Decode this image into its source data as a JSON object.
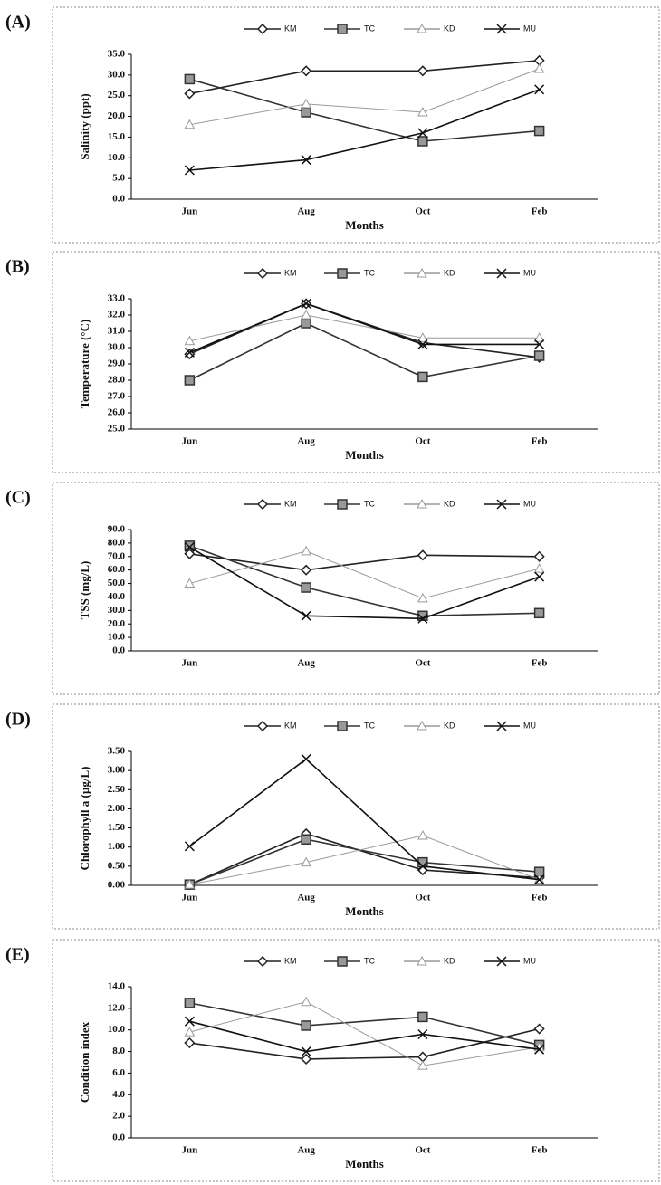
{
  "chart_data": [
    {
      "type": "line",
      "label": "(A)",
      "x_label": "Months",
      "y_label": "Salinity (ppt)",
      "categories": [
        "Jun",
        "Aug",
        "Oct",
        "Feb"
      ],
      "ylim": [
        0,
        35
      ],
      "yticks": [
        {
          "value": 0,
          "label": "0.0"
        },
        {
          "value": 5,
          "label": "5.0"
        },
        {
          "value": 10,
          "label": "10.0"
        },
        {
          "value": 15,
          "label": "15.0"
        },
        {
          "value": 20,
          "label": "20.0"
        },
        {
          "value": 25,
          "label": "25.0"
        },
        {
          "value": 30,
          "label": "30.0"
        },
        {
          "value": 35,
          "label": "35.0"
        }
      ],
      "series": [
        {
          "name": "KM",
          "color": "#222222",
          "marker": "diamond",
          "values": [
            25.5,
            31,
            31,
            33.5
          ]
        },
        {
          "name": "TC",
          "color": "#333333",
          "marker": "square",
          "values": [
            29,
            21,
            14,
            16.5
          ]
        },
        {
          "name": "KD",
          "color": "#9a9a9a",
          "marker": "triangle",
          "values": [
            18,
            23,
            21,
            31.5
          ]
        },
        {
          "name": "MU",
          "color": "#111111",
          "marker": "x",
          "values": [
            7,
            9.5,
            16,
            26.5
          ]
        }
      ]
    },
    {
      "type": "line",
      "label": "(B)",
      "x_label": "Months",
      "y_label": "Temperature (°C)",
      "categories": [
        "Jun",
        "Aug",
        "Oct",
        "Feb"
      ],
      "ylim": [
        25,
        33
      ],
      "yticks": [
        {
          "value": 25,
          "label": "25.0"
        },
        {
          "value": 26,
          "label": "26.0"
        },
        {
          "value": 27,
          "label": "27.0"
        },
        {
          "value": 28,
          "label": "28.0"
        },
        {
          "value": 29,
          "label": "29.0"
        },
        {
          "value": 30,
          "label": "30.0"
        },
        {
          "value": 31,
          "label": "31.0"
        },
        {
          "value": 32,
          "label": "32.0"
        },
        {
          "value": 33,
          "label": "33.0"
        }
      ],
      "series": [
        {
          "name": "KM",
          "color": "#222222",
          "marker": "diamond",
          "values": [
            29.6,
            32.7,
            30.3,
            29.4
          ]
        },
        {
          "name": "TC",
          "color": "#333333",
          "marker": "square",
          "values": [
            28.0,
            31.5,
            28.2,
            29.5
          ]
        },
        {
          "name": "KD",
          "color": "#9a9a9a",
          "marker": "triangle",
          "values": [
            30.4,
            32.0,
            30.6,
            30.6
          ]
        },
        {
          "name": "MU",
          "color": "#111111",
          "marker": "x",
          "values": [
            29.7,
            32.7,
            30.2,
            30.2
          ]
        }
      ]
    },
    {
      "type": "line",
      "label": "(C)",
      "y_label": "TSS (mg/L)",
      "categories": [
        "Jun",
        "Aug",
        "Oct",
        "Feb"
      ],
      "ylim": [
        0,
        90
      ],
      "yticks": [
        {
          "value": 0,
          "label": "0.0"
        },
        {
          "value": 10,
          "label": "10.0"
        },
        {
          "value": 20,
          "label": "20.0"
        },
        {
          "value": 30,
          "label": "30.0"
        },
        {
          "value": 40,
          "label": "40.0"
        },
        {
          "value": 50,
          "label": "50.0"
        },
        {
          "value": 60,
          "label": "60.0"
        },
        {
          "value": 70,
          "label": "70.0"
        },
        {
          "value": 80,
          "label": "80.0"
        },
        {
          "value": 90,
          "label": "90.0"
        }
      ],
      "series": [
        {
          "name": "KM",
          "color": "#222222",
          "marker": "diamond",
          "values": [
            72,
            60,
            71,
            70
          ]
        },
        {
          "name": "TC",
          "color": "#333333",
          "marker": "square",
          "values": [
            78,
            47,
            26,
            28
          ]
        },
        {
          "name": "KD",
          "color": "#9a9a9a",
          "marker": "triangle",
          "values": [
            50,
            74,
            39,
            61
          ]
        },
        {
          "name": "MU",
          "color": "#111111",
          "marker": "x",
          "values": [
            77,
            26,
            24,
            55
          ]
        }
      ]
    },
    {
      "type": "line",
      "label": "(D)",
      "x_label": "Months",
      "y_label": "Chlorophyll a (µg/L)",
      "categories": [
        "Jun",
        "Aug",
        "Oct",
        "Feb"
      ],
      "ylim": [
        0,
        3.5
      ],
      "yticks": [
        {
          "value": 0,
          "label": "0.00"
        },
        {
          "value": 0.5,
          "label": "0.50"
        },
        {
          "value": 1,
          "label": "1.00"
        },
        {
          "value": 1.5,
          "label": "1.50"
        },
        {
          "value": 2,
          "label": "2.00"
        },
        {
          "value": 2.5,
          "label": "2.50"
        },
        {
          "value": 3,
          "label": "3.00"
        },
        {
          "value": 3.5,
          "label": "3.50"
        }
      ],
      "series": [
        {
          "name": "KM",
          "color": "#222222",
          "marker": "diamond",
          "values": [
            0.02,
            1.35,
            0.4,
            0.2
          ]
        },
        {
          "name": "TC",
          "color": "#333333",
          "marker": "square",
          "values": [
            0.02,
            1.2,
            0.6,
            0.35
          ]
        },
        {
          "name": "KD",
          "color": "#9a9a9a",
          "marker": "triangle",
          "values": [
            0.02,
            0.6,
            1.3,
            0.15
          ]
        },
        {
          "name": "MU",
          "color": "#111111",
          "marker": "x",
          "values": [
            1.02,
            3.3,
            0.5,
            0.15
          ]
        }
      ]
    },
    {
      "type": "line",
      "label": "(E)",
      "x_label": "Months",
      "y_label": "Condition index",
      "categories": [
        "Jun",
        "Aug",
        "Oct",
        "Feb"
      ],
      "ylim": [
        0,
        14
      ],
      "yticks": [
        {
          "value": 0,
          "label": "0.0"
        },
        {
          "value": 2,
          "label": "2.0"
        },
        {
          "value": 4,
          "label": "4.0"
        },
        {
          "value": 6,
          "label": "6.0"
        },
        {
          "value": 8,
          "label": "8.0"
        },
        {
          "value": 10,
          "label": "10.0"
        },
        {
          "value": 12,
          "label": "12.0"
        },
        {
          "value": 14,
          "label": "14.0"
        }
      ],
      "series": [
        {
          "name": "KM",
          "color": "#222222",
          "marker": "diamond",
          "values": [
            8.8,
            7.3,
            7.5,
            10.1
          ]
        },
        {
          "name": "TC",
          "color": "#333333",
          "marker": "square",
          "values": [
            12.5,
            10.4,
            11.2,
            8.6
          ]
        },
        {
          "name": "KD",
          "color": "#9a9a9a",
          "marker": "triangle",
          "values": [
            9.8,
            12.6,
            6.7,
            8.4
          ]
        },
        {
          "name": "MU",
          "color": "#111111",
          "marker": "x",
          "values": [
            10.8,
            8.0,
            9.6,
            8.2
          ]
        }
      ]
    }
  ]
}
